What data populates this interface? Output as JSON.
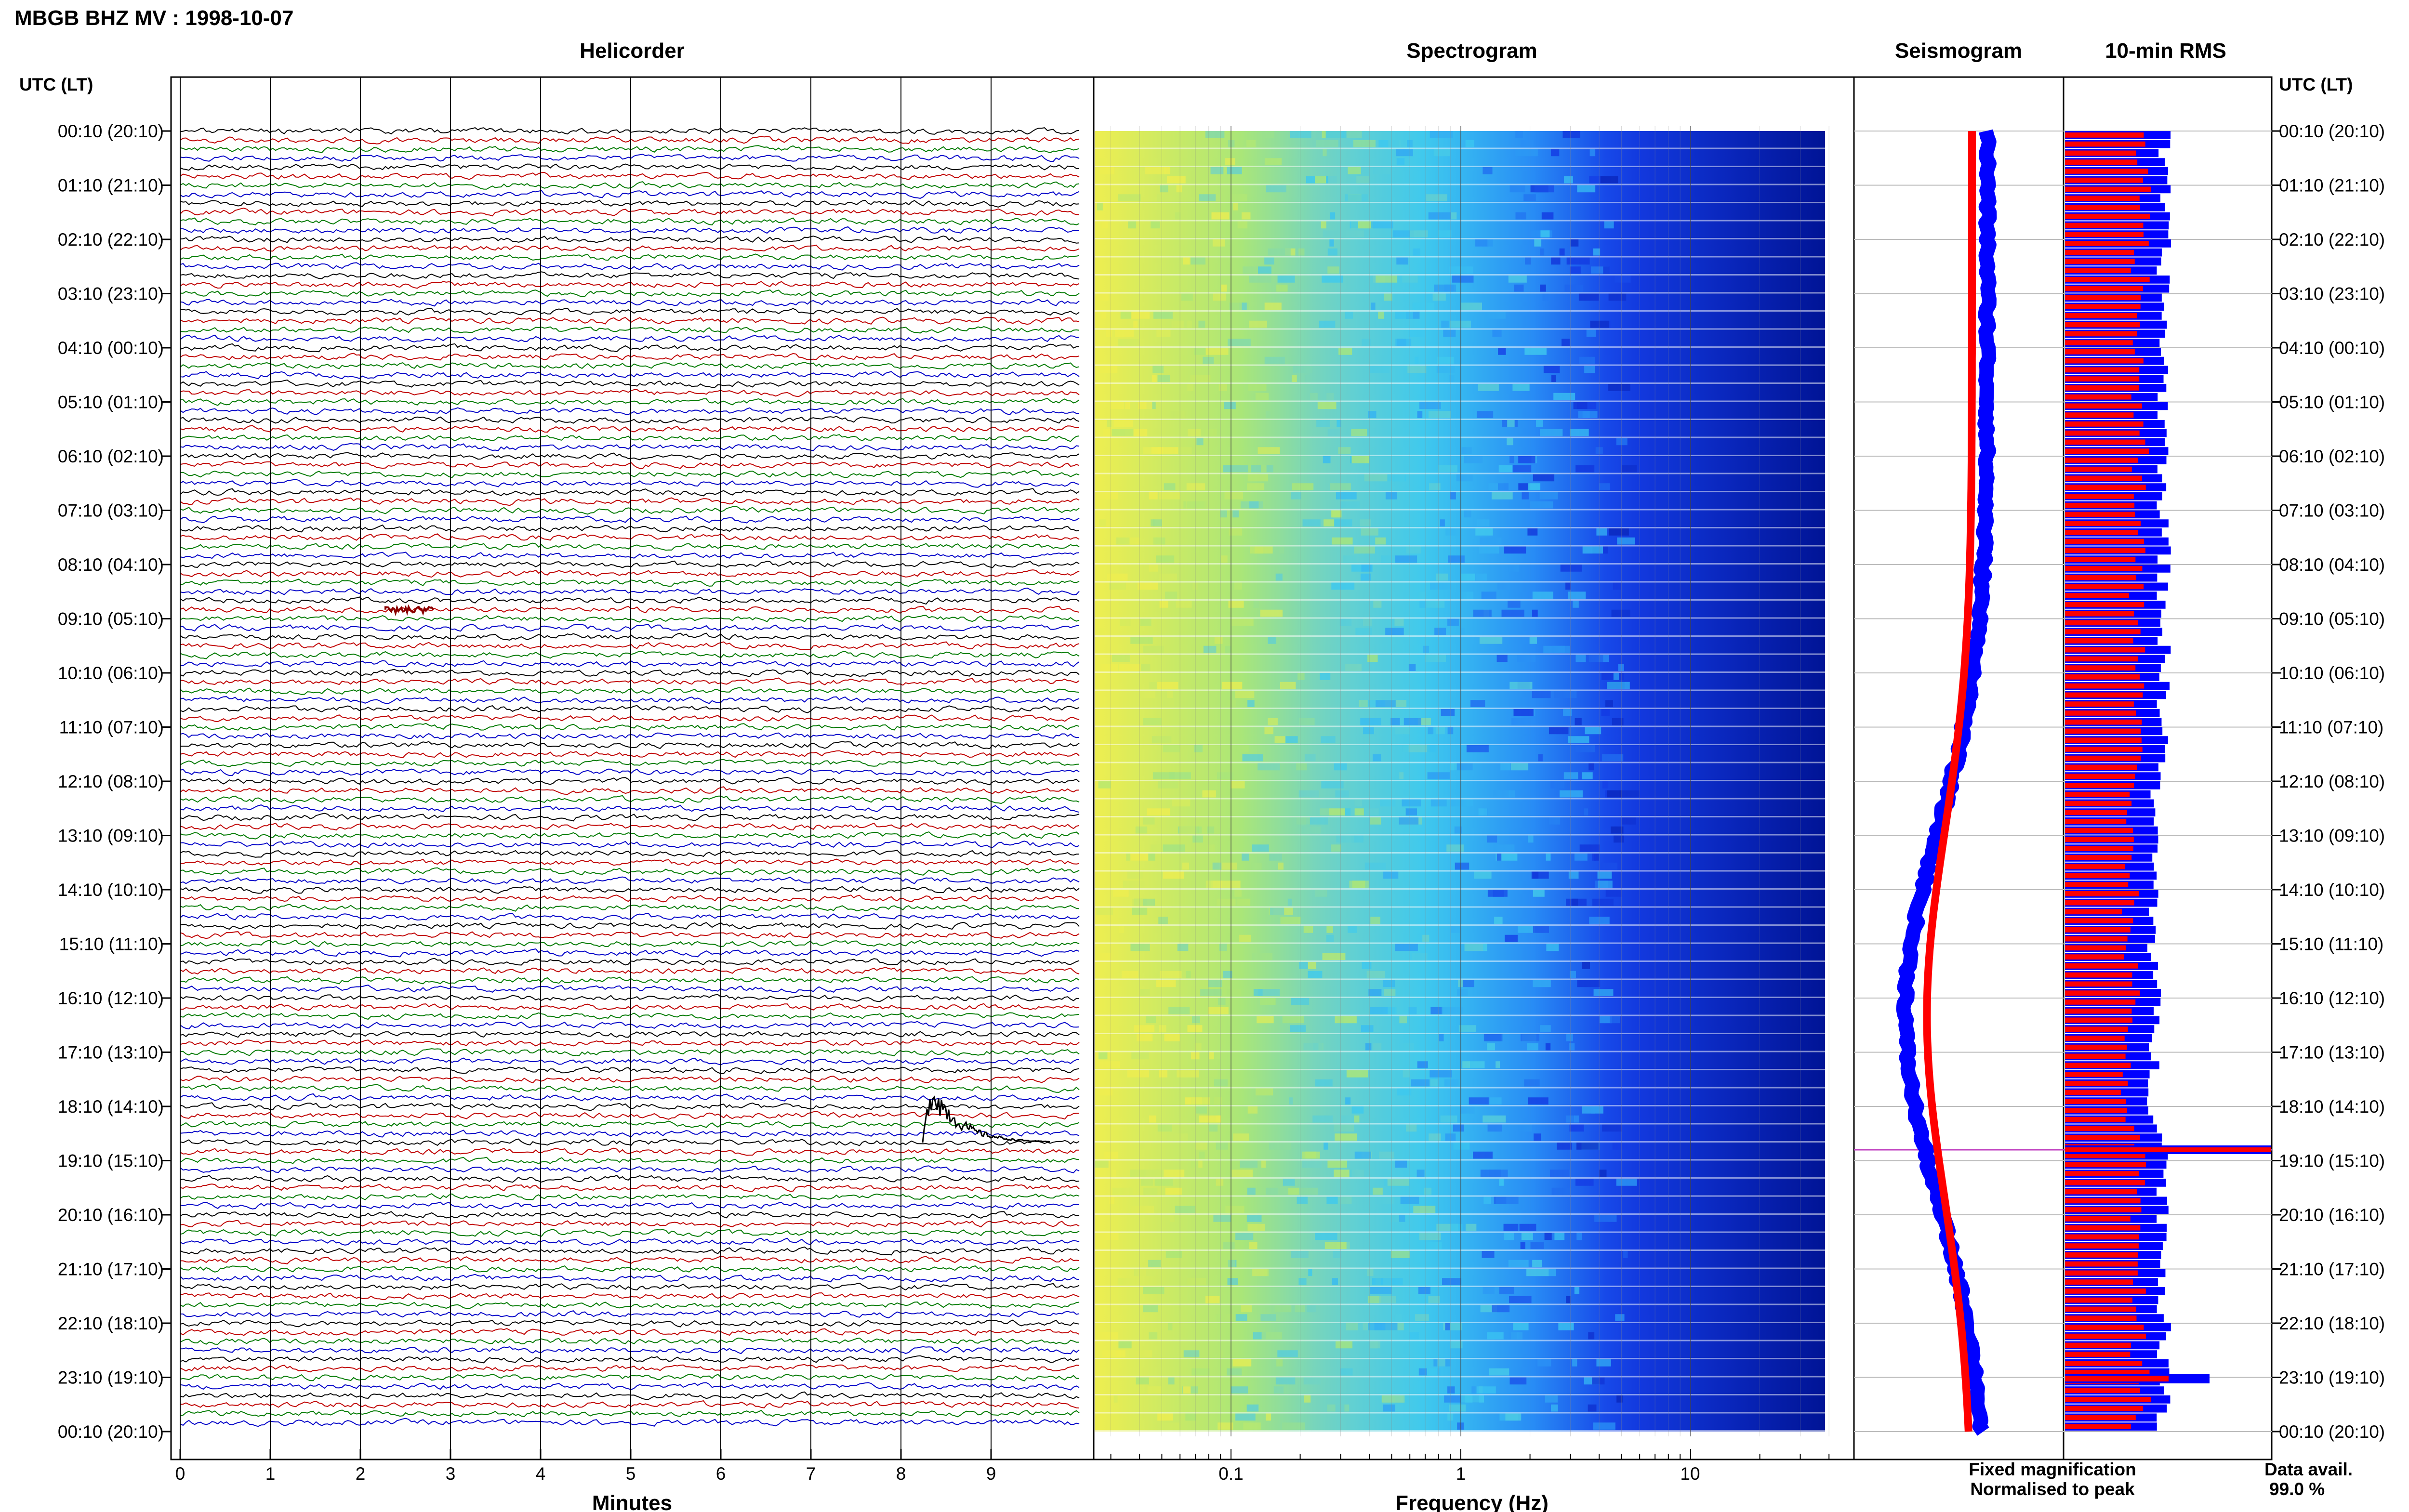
{
  "title": "MBGB BHZ MV : 1998-10-07",
  "panels": {
    "helicorder": "Helicorder",
    "spectrogram": "Spectrogram",
    "seismogram": "Seismogram",
    "rms": "10-min RMS"
  },
  "axis_header_left": "UTC (LT)",
  "axis_header_right": "UTC (LT)",
  "time_labels": [
    "00:10 (20:10)",
    "01:10 (21:10)",
    "02:10 (22:10)",
    "03:10 (23:10)",
    "04:10 (00:10)",
    "05:10 (01:10)",
    "06:10 (02:10)",
    "07:10 (03:10)",
    "08:10 (04:10)",
    "09:10 (05:10)",
    "10:10 (06:10)",
    "11:10 (07:10)",
    "12:10 (08:10)",
    "13:10 (09:10)",
    "14:10 (10:10)",
    "15:10 (11:10)",
    "16:10 (12:10)",
    "17:10 (13:10)",
    "18:10 (14:10)",
    "19:10 (15:10)",
    "20:10 (16:10)",
    "21:10 (17:10)",
    "22:10 (18:10)",
    "23:10 (19:10)",
    "00:10 (20:10)"
  ],
  "minutes_ticks": [
    "0",
    "1",
    "2",
    "3",
    "4",
    "5",
    "6",
    "7",
    "8",
    "9"
  ],
  "minutes_label": "Minutes",
  "freq_ticks": [
    "0.1",
    "1",
    "10"
  ],
  "freq_label": "Frequency (Hz)",
  "legend": {
    "fixed": "Fixed magnification",
    "normalised": "Normalised to peak",
    "fixed_color": "#0000ff",
    "normalised_color": "#ff0000"
  },
  "data_avail": {
    "label": "Data avail.",
    "value": "99.0 %"
  },
  "trace_colors": [
    "#000000",
    "#c00000",
    "#007a00",
    "#0000c8"
  ],
  "chart_data": {
    "type": "helicorder",
    "station": "MBGB",
    "channel": "BHZ",
    "network": "MV",
    "date": "1998-10-07",
    "rows_per_hour": 6,
    "minutes_per_row": 10,
    "time_range_utc": [
      "00:10",
      "00:10"
    ],
    "freq_range_hz": [
      0.03,
      40
    ],
    "freq_scale": "log",
    "events": [
      {
        "utc": "18:50",
        "minute": 8.2,
        "type": "large"
      },
      {
        "utc": "09:00",
        "minute": 2.4,
        "type": "small"
      },
      {
        "utc": "23:10",
        "minute": 6.6,
        "type": "step"
      }
    ],
    "rms_spikes": [
      {
        "utc": "19:00"
      },
      {
        "utc": "23:10"
      }
    ],
    "data_availability_percent": 99.0
  }
}
